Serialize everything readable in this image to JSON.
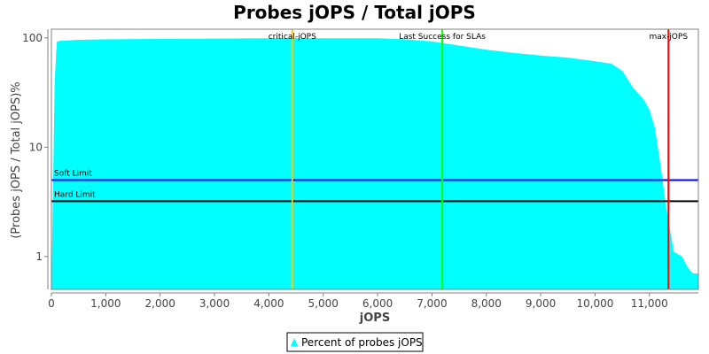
{
  "chart_data": {
    "type": "area",
    "title": "Probes jOPS / Total jOPS",
    "xlabel": "jOPS",
    "ylabel": "(Probes jOPS / Total jOPS)%",
    "x_scale": "linear",
    "y_scale": "log",
    "xlim": [
      0,
      11900
    ],
    "ylim": [
      0.5,
      120
    ],
    "x_ticks": [
      0,
      1000,
      2000,
      3000,
      4000,
      5000,
      6000,
      7000,
      8000,
      9000,
      10000,
      11000
    ],
    "x_tick_labels": [
      "0",
      "1,000",
      "2,000",
      "3,000",
      "4,000",
      "5,000",
      "6,000",
      "7,000",
      "8,000",
      "9,000",
      "10,000",
      "11,000"
    ],
    "y_ticks": [
      1,
      10,
      100
    ],
    "y_tick_labels": [
      "1",
      "10",
      "100"
    ],
    "grid": false,
    "series": [
      {
        "name": "Percent of probes jOPS",
        "color": "#00ffff",
        "x": [
          0,
          60,
          100,
          150,
          500,
          1000,
          2000,
          3000,
          4000,
          5000,
          6000,
          6500,
          7000,
          7500,
          8000,
          8500,
          9000,
          9500,
          10000,
          10300,
          10500,
          10700,
          10900,
          11000,
          11100,
          11200,
          11300,
          11350,
          11450,
          11600,
          11700,
          11800,
          11900
        ],
        "y": [
          0.5,
          40,
          92,
          94,
          96,
          97,
          98,
          98.5,
          99,
          99.2,
          99,
          97,
          93,
          85,
          78,
          73,
          69,
          66,
          61,
          58,
          50,
          35,
          27,
          22,
          15,
          7,
          3,
          2.1,
          1.1,
          1,
          0.8,
          0.7,
          0.7
        ]
      }
    ],
    "vertical_markers": [
      {
        "label": "critical-jOPS",
        "x": 4430,
        "color": "#ffc800"
      },
      {
        "label": "Last Success for SLAs",
        "x": 7190,
        "color": "#00ff00"
      },
      {
        "label": "max-jOPS",
        "x": 11350,
        "color": "#ff0000"
      }
    ],
    "horizontal_markers": [
      {
        "label": "Soft Limit",
        "y": 5,
        "color": "#0000ff"
      },
      {
        "label": "Hard Limit",
        "y": 3.2,
        "color": "#000000"
      }
    ],
    "legend": {
      "placement": "bottom-center",
      "entries": [
        "Percent of probes jOPS"
      ]
    }
  }
}
